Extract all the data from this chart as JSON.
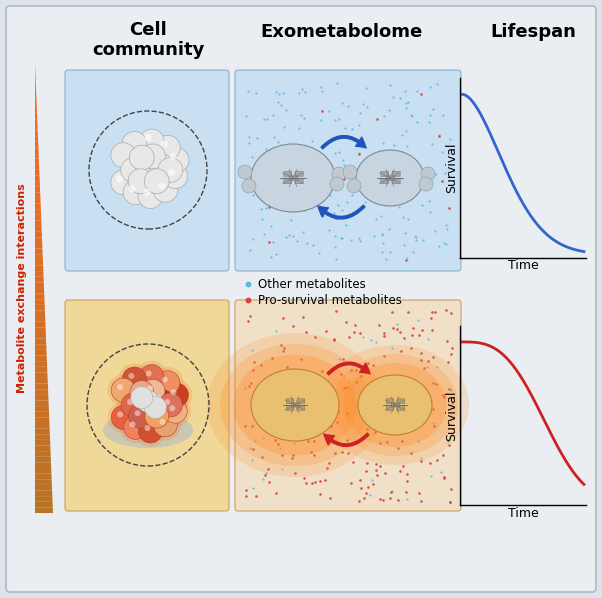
{
  "bg_color": "#dde3ea",
  "inner_bg": "#eaeef2",
  "title_cell": "Cell\ncommunity",
  "title_exo": "Exometabolome",
  "title_life": "Lifespan",
  "left_label": "Metabolite exchange interactions",
  "legend_blue": "Other metabolites",
  "legend_red": "Pro-survival metabolites",
  "survival_label": "Survival",
  "time_label": "Time",
  "blue_dot_color": "#5bb8e8",
  "red_dot_color": "#d94040",
  "blue_curve_color": "#3366cc",
  "red_curve_color": "#cc2222",
  "blue_box_bg": "#c8e0f2",
  "orange_box_bg": "#f0d898",
  "arrow_blue": "#2255bb",
  "arrow_red": "#cc2222",
  "cell_gray": "#d8d8d8",
  "cell_edge": "#999999",
  "sphere_white": "#e8e8e8",
  "sphere_edge": "#aaaaaa"
}
